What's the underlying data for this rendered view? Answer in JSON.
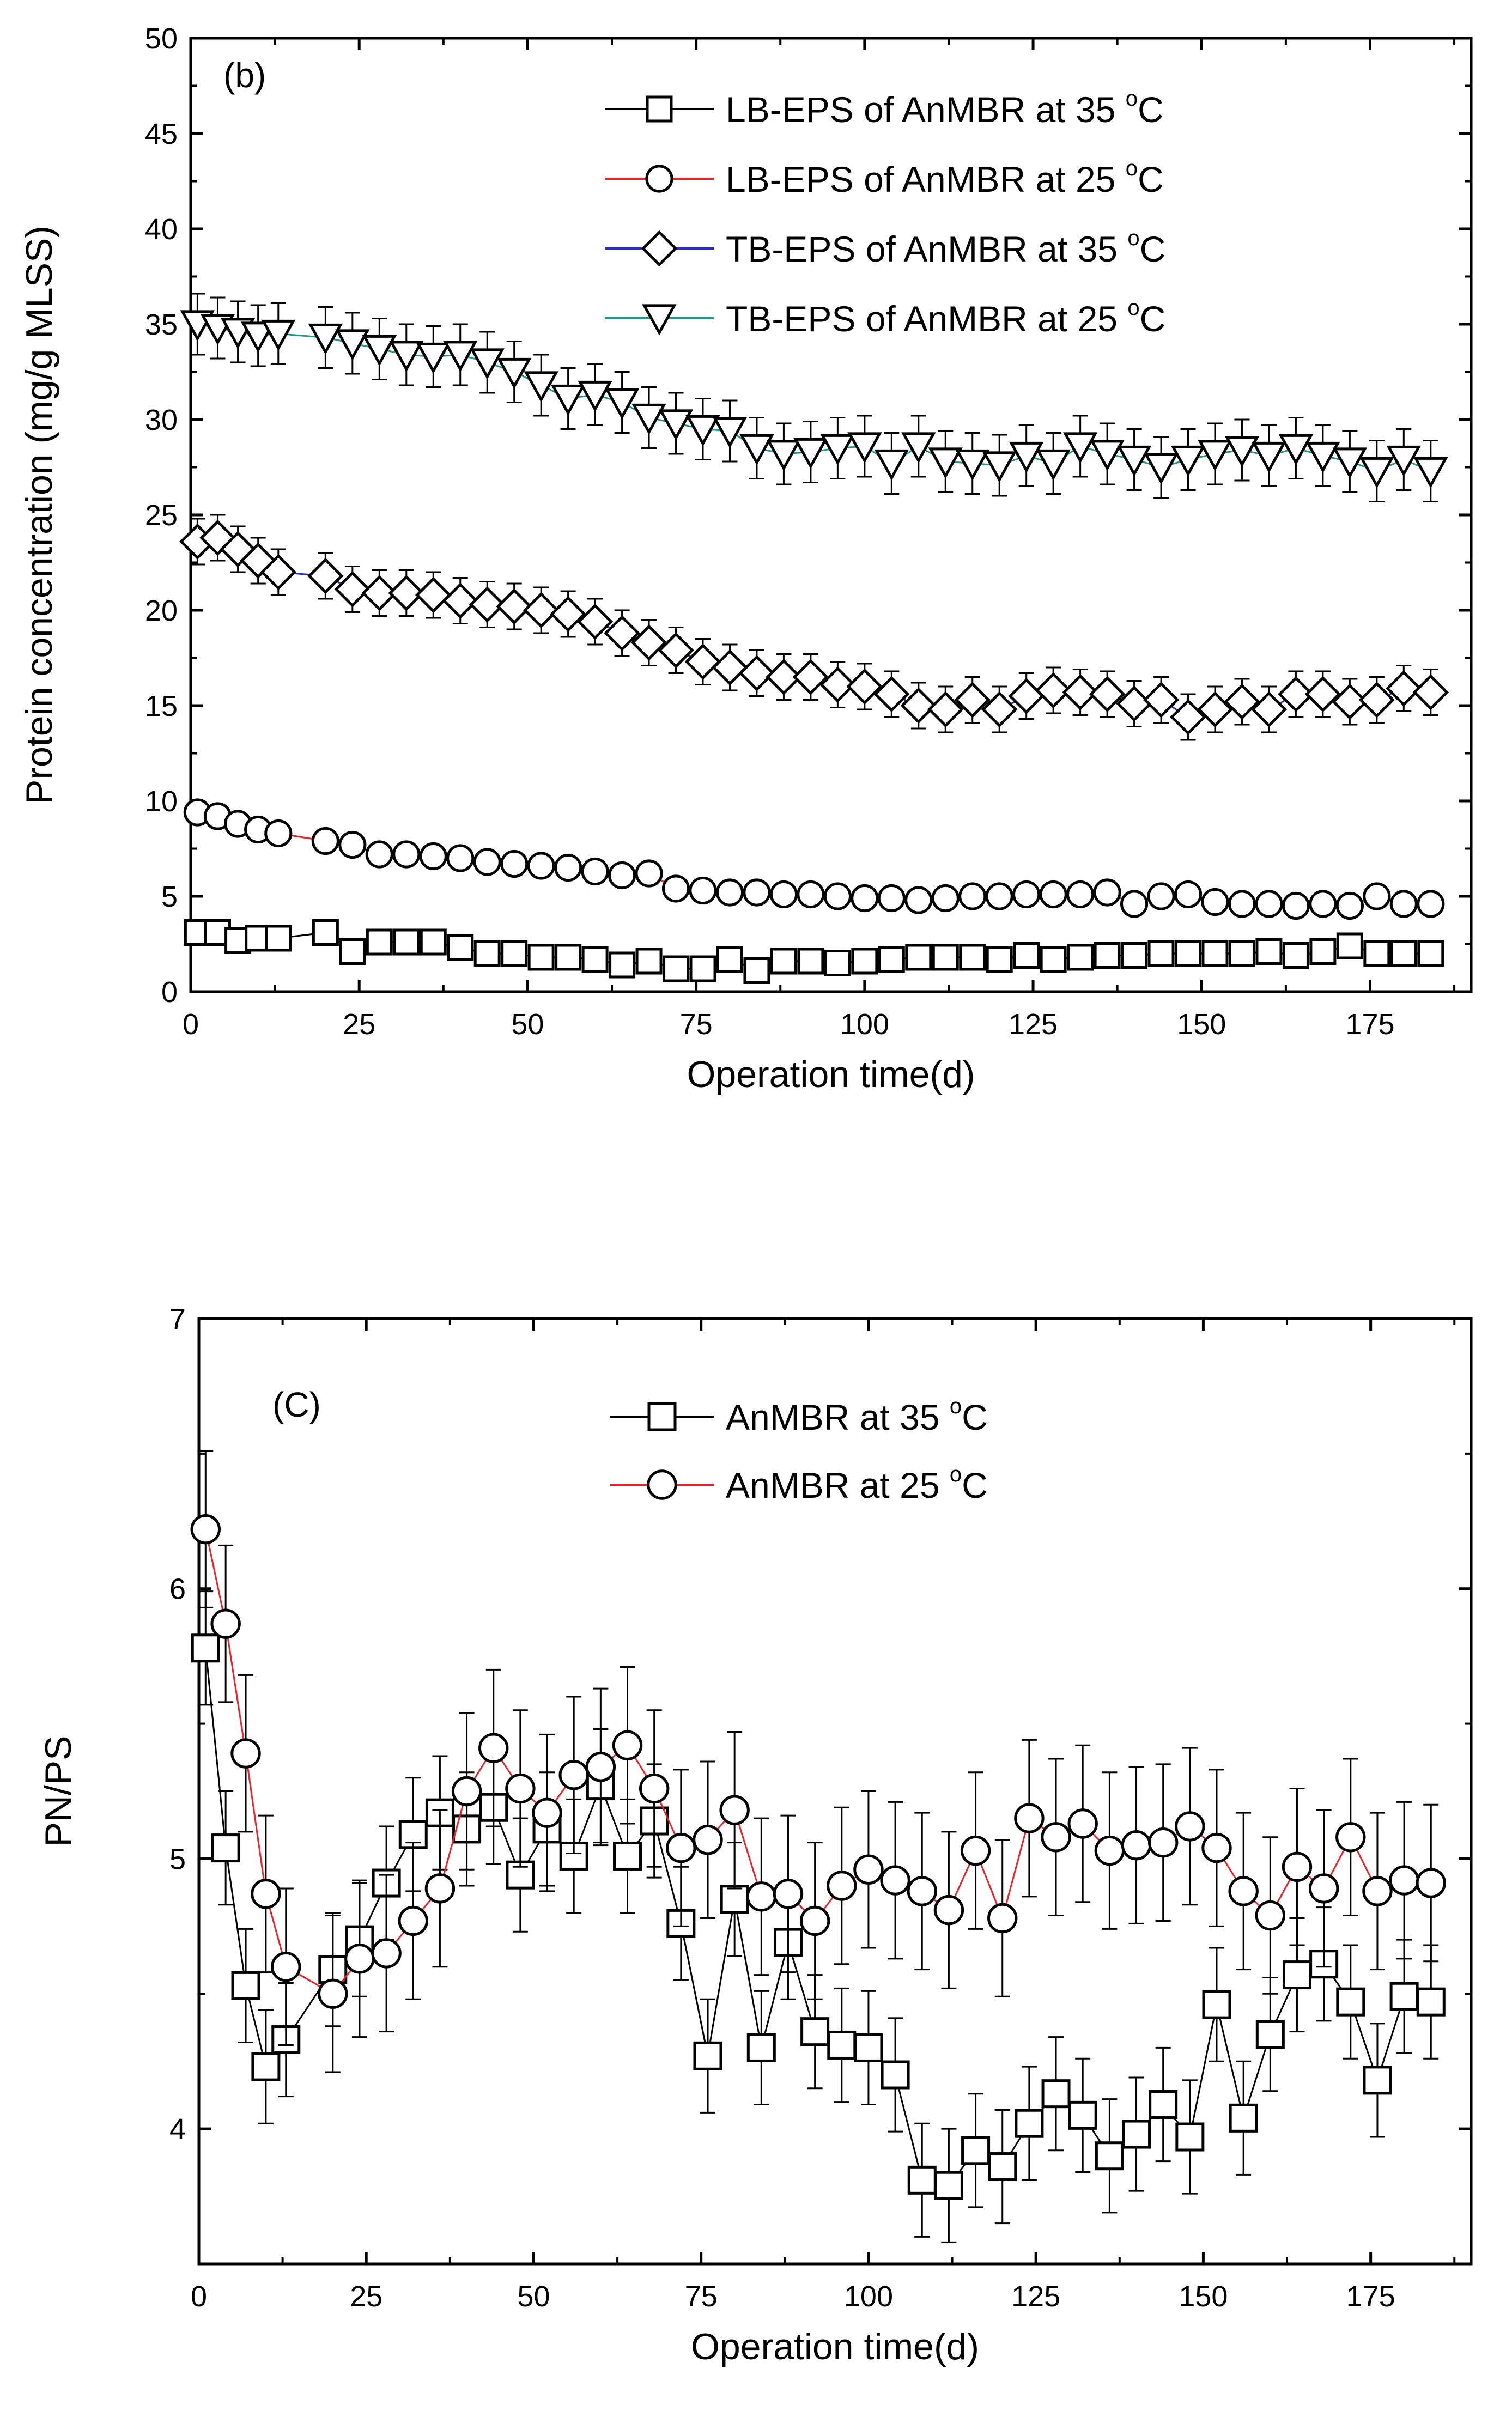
{
  "chart_data": [
    {
      "type": "scatter",
      "panel_label": "(b)",
      "xlabel": "Operation time(d)",
      "ylabel": "Protein concentration (mg/g MLSS)",
      "xlim": [
        0,
        190
      ],
      "ylim": [
        0,
        50
      ],
      "xticks": [
        0,
        25,
        50,
        75,
        100,
        125,
        150,
        175
      ],
      "yticks": [
        0,
        5,
        10,
        15,
        20,
        25,
        30,
        35,
        40,
        45,
        50
      ],
      "legend_position": "top-right",
      "series": [
        {
          "name": "LB-EPS of AnMBR at 35",
          "name_unit": "C",
          "name_sup": "o",
          "marker": "square",
          "line_color": "#000000",
          "x": [
            1,
            4,
            7,
            10,
            13,
            20,
            24,
            28,
            32,
            36,
            40,
            44,
            48,
            52,
            56,
            60,
            64,
            68,
            72,
            76,
            80,
            84,
            88,
            92,
            96,
            100,
            104,
            108,
            112,
            116,
            120,
            124,
            128,
            132,
            136,
            140,
            144,
            148,
            152,
            156,
            160,
            164,
            168,
            172,
            176,
            180,
            184
          ],
          "y": [
            3.1,
            3.1,
            2.7,
            2.8,
            2.8,
            3.1,
            2.1,
            2.6,
            2.6,
            2.6,
            2.3,
            2.0,
            2.0,
            1.8,
            1.8,
            1.7,
            1.4,
            1.6,
            1.2,
            1.2,
            1.7,
            1.1,
            1.6,
            1.6,
            1.5,
            1.6,
            1.7,
            1.8,
            1.8,
            1.8,
            1.7,
            1.9,
            1.7,
            1.8,
            1.9,
            1.9,
            2.0,
            2.0,
            2.0,
            2.0,
            2.1,
            1.9,
            2.1,
            2.4,
            2.0,
            2.0,
            2.0
          ],
          "err": [
            0.4,
            0.4,
            0.4,
            0.4,
            0.4,
            0.4,
            0.4,
            0.4,
            0.4,
            0.4,
            0.4,
            0.4,
            0.4,
            0.4,
            0.4,
            0.4,
            0.4,
            0.4,
            0.4,
            0.4,
            0.4,
            0.4,
            0.4,
            0.4,
            0.4,
            0.4,
            0.4,
            0.4,
            0.4,
            0.4,
            0.4,
            0.4,
            0.4,
            0.4,
            0.4,
            0.4,
            0.4,
            0.4,
            0.4,
            0.4,
            0.4,
            0.4,
            0.4,
            0.4,
            0.4,
            0.4,
            0.4
          ]
        },
        {
          "name": "LB-EPS of AnMBR at 25",
          "name_unit": "C",
          "name_sup": "o",
          "marker": "circle",
          "line_color": "#e8232a",
          "x": [
            1,
            4,
            7,
            10,
            13,
            20,
            24,
            28,
            32,
            36,
            40,
            44,
            48,
            52,
            56,
            60,
            64,
            68,
            72,
            76,
            80,
            84,
            88,
            92,
            96,
            100,
            104,
            108,
            112,
            116,
            120,
            124,
            128,
            132,
            136,
            140,
            144,
            148,
            152,
            156,
            160,
            164,
            168,
            172,
            176,
            180,
            184
          ],
          "y": [
            9.4,
            9.2,
            8.8,
            8.5,
            8.3,
            7.9,
            7.7,
            7.2,
            7.2,
            7.1,
            7.0,
            6.8,
            6.7,
            6.6,
            6.5,
            6.3,
            6.1,
            6.2,
            5.4,
            5.3,
            5.2,
            5.2,
            5.1,
            5.1,
            5.0,
            4.9,
            4.9,
            4.8,
            4.9,
            5.0,
            5.0,
            5.1,
            5.1,
            5.1,
            5.2,
            4.6,
            5.0,
            5.1,
            4.7,
            4.6,
            4.6,
            4.5,
            4.6,
            4.5,
            5.0,
            4.6,
            4.6
          ],
          "err": [
            0.4,
            0.4,
            0.4,
            0.4,
            0.4,
            0.4,
            0.4,
            0.4,
            0.4,
            0.4,
            0.4,
            0.4,
            0.4,
            0.4,
            0.4,
            0.4,
            0.4,
            0.4,
            0.4,
            0.4,
            0.4,
            0.4,
            0.4,
            0.4,
            0.4,
            0.4,
            0.4,
            0.4,
            0.4,
            0.4,
            0.4,
            0.4,
            0.4,
            0.4,
            0.4,
            0.4,
            0.4,
            0.4,
            0.4,
            0.4,
            0.4,
            0.4,
            0.4,
            0.4,
            0.4,
            0.4,
            0.4
          ]
        },
        {
          "name": "TB-EPS of AnMBR at 35",
          "name_unit": "C",
          "name_sup": "o",
          "marker": "diamond",
          "line_color": "#2b2bd4",
          "x": [
            1,
            4,
            7,
            10,
            13,
            20,
            24,
            28,
            32,
            36,
            40,
            44,
            48,
            52,
            56,
            60,
            64,
            68,
            72,
            76,
            80,
            84,
            88,
            92,
            96,
            100,
            104,
            108,
            112,
            116,
            120,
            124,
            128,
            132,
            136,
            140,
            144,
            148,
            152,
            156,
            160,
            164,
            168,
            172,
            176,
            180,
            184
          ],
          "y": [
            23.6,
            23.8,
            23.2,
            22.6,
            22.0,
            21.8,
            21.1,
            20.9,
            20.9,
            20.8,
            20.5,
            20.3,
            20.2,
            20.0,
            19.8,
            19.4,
            18.8,
            18.3,
            17.9,
            17.3,
            17.0,
            16.7,
            16.5,
            16.5,
            16.1,
            16.0,
            15.6,
            15.0,
            14.8,
            15.3,
            14.8,
            15.5,
            15.8,
            15.7,
            15.6,
            15.1,
            15.3,
            14.4,
            14.8,
            15.2,
            14.8,
            15.6,
            15.6,
            15.2,
            15.3,
            15.9,
            15.7
          ],
          "err": [
            1.2,
            1.2,
            1.2,
            1.2,
            1.2,
            1.2,
            1.2,
            1.2,
            1.2,
            1.2,
            1.2,
            1.2,
            1.2,
            1.2,
            1.2,
            1.2,
            1.2,
            1.2,
            1.2,
            1.2,
            1.2,
            1.2,
            1.2,
            1.2,
            1.2,
            1.2,
            1.2,
            1.2,
            1.2,
            1.2,
            1.2,
            1.2,
            1.2,
            1.2,
            1.2,
            1.2,
            1.2,
            1.2,
            1.2,
            1.2,
            1.2,
            1.2,
            1.2,
            1.2,
            1.2,
            1.2,
            1.2
          ]
        },
        {
          "name": "TB-EPS of AnMBR at 25",
          "name_unit": "C",
          "name_sup": "o",
          "marker": "triangle-down",
          "line_color": "#1a9a8a",
          "x": [
            1,
            4,
            7,
            10,
            13,
            20,
            24,
            28,
            32,
            36,
            40,
            44,
            48,
            52,
            56,
            60,
            64,
            68,
            72,
            76,
            80,
            84,
            88,
            92,
            96,
            100,
            104,
            108,
            112,
            116,
            120,
            124,
            128,
            132,
            136,
            140,
            144,
            148,
            152,
            156,
            160,
            164,
            168,
            172,
            176,
            180,
            184
          ],
          "y": [
            35.0,
            34.8,
            34.6,
            34.4,
            34.5,
            34.3,
            34.0,
            33.7,
            33.4,
            33.3,
            33.4,
            33.0,
            32.5,
            31.8,
            31.1,
            31.3,
            30.9,
            30.1,
            29.8,
            29.5,
            29.4,
            28.5,
            28.2,
            28.3,
            28.5,
            28.6,
            27.7,
            28.6,
            27.8,
            27.7,
            27.6,
            28.1,
            27.7,
            28.6,
            28.2,
            27.9,
            27.5,
            27.9,
            28.2,
            28.4,
            28.1,
            28.5,
            28.1,
            27.8,
            27.3,
            27.9,
            27.3
          ],
          "err": [
            1.6,
            1.6,
            1.6,
            1.6,
            1.6,
            1.6,
            1.6,
            1.6,
            1.6,
            1.6,
            1.6,
            1.6,
            1.6,
            1.6,
            1.6,
            1.6,
            1.6,
            1.6,
            1.6,
            1.6,
            1.6,
            1.6,
            1.6,
            1.6,
            1.6,
            1.6,
            1.6,
            1.6,
            1.6,
            1.6,
            1.6,
            1.6,
            1.6,
            1.6,
            1.6,
            1.6,
            1.6,
            1.6,
            1.6,
            1.6,
            1.6,
            1.6,
            1.6,
            1.6,
            1.6,
            1.6,
            1.6
          ]
        }
      ]
    },
    {
      "type": "scatter",
      "panel_label": "(C)",
      "xlabel": "Operation time(d)",
      "ylabel": "PN/PS",
      "xlim": [
        0,
        190
      ],
      "ylim": [
        3.5,
        7
      ],
      "xticks": [
        0,
        25,
        50,
        75,
        100,
        125,
        150,
        175
      ],
      "yticks": [
        4,
        5,
        6,
        7
      ],
      "legend_position": "top-center",
      "series": [
        {
          "name": "AnMBR at 35",
          "name_unit": "C",
          "name_sup": "o",
          "marker": "square",
          "line_color": "#000000",
          "x": [
            1,
            4,
            7,
            10,
            13,
            20,
            24,
            28,
            32,
            36,
            40,
            44,
            48,
            52,
            56,
            60,
            64,
            68,
            72,
            76,
            80,
            84,
            88,
            92,
            96,
            100,
            104,
            108,
            112,
            116,
            120,
            124,
            128,
            132,
            136,
            140,
            144,
            148,
            152,
            156,
            160,
            164,
            168,
            172,
            176,
            180,
            184
          ],
          "y": [
            5.78,
            5.04,
            4.53,
            4.23,
            4.33,
            4.59,
            4.7,
            4.91,
            5.09,
            5.17,
            5.11,
            5.19,
            4.94,
            5.11,
            5.01,
            5.27,
            5.01,
            5.14,
            4.76,
            4.27,
            4.85,
            4.3,
            4.69,
            4.36,
            4.31,
            4.3,
            4.2,
            3.81,
            3.79,
            3.92,
            3.86,
            4.02,
            4.13,
            4.05,
            3.9,
            3.98,
            4.09,
            3.97,
            4.46,
            4.04,
            4.35,
            4.57,
            4.61,
            4.47,
            4.18,
            4.49,
            4.47
          ],
          "err": [
            0.21,
            0.21,
            0.21,
            0.21,
            0.21,
            0.21,
            0.21,
            0.21,
            0.21,
            0.21,
            0.21,
            0.21,
            0.21,
            0.21,
            0.21,
            0.21,
            0.21,
            0.21,
            0.21,
            0.21,
            0.21,
            0.21,
            0.21,
            0.21,
            0.21,
            0.21,
            0.21,
            0.21,
            0.21,
            0.21,
            0.21,
            0.21,
            0.21,
            0.21,
            0.21,
            0.21,
            0.21,
            0.21,
            0.21,
            0.21,
            0.21,
            0.21,
            0.21,
            0.21,
            0.21,
            0.21,
            0.21
          ]
        },
        {
          "name": "AnMBR at 25",
          "name_unit": "C",
          "name_sup": "o",
          "marker": "circle",
          "line_color": "#e8232a",
          "x": [
            1,
            4,
            7,
            10,
            13,
            20,
            24,
            28,
            32,
            36,
            40,
            44,
            48,
            52,
            56,
            60,
            64,
            68,
            72,
            76,
            80,
            84,
            88,
            92,
            96,
            100,
            104,
            108,
            112,
            116,
            120,
            124,
            128,
            132,
            136,
            140,
            144,
            148,
            152,
            156,
            160,
            164,
            168,
            172,
            176,
            180,
            184
          ],
          "y": [
            6.22,
            5.87,
            5.39,
            4.87,
            4.6,
            4.5,
            4.63,
            4.65,
            4.77,
            4.89,
            5.25,
            5.41,
            5.26,
            5.17,
            5.31,
            5.34,
            5.42,
            5.26,
            5.04,
            5.07,
            5.18,
            4.86,
            4.87,
            4.77,
            4.9,
            4.96,
            4.92,
            4.88,
            4.81,
            5.03,
            4.78,
            5.15,
            5.08,
            5.13,
            5.03,
            5.05,
            5.06,
            5.12,
            5.04,
            4.88,
            4.79,
            4.97,
            4.89,
            5.08,
            4.88,
            4.92,
            4.91
          ],
          "err": [
            0.29,
            0.29,
            0.29,
            0.29,
            0.29,
            0.29,
            0.29,
            0.29,
            0.29,
            0.29,
            0.29,
            0.29,
            0.29,
            0.29,
            0.29,
            0.29,
            0.29,
            0.29,
            0.29,
            0.29,
            0.29,
            0.29,
            0.29,
            0.29,
            0.29,
            0.29,
            0.29,
            0.29,
            0.29,
            0.29,
            0.29,
            0.29,
            0.29,
            0.29,
            0.29,
            0.29,
            0.29,
            0.29,
            0.29,
            0.29,
            0.29,
            0.29,
            0.29,
            0.29,
            0.29,
            0.29,
            0.29
          ]
        }
      ]
    }
  ]
}
